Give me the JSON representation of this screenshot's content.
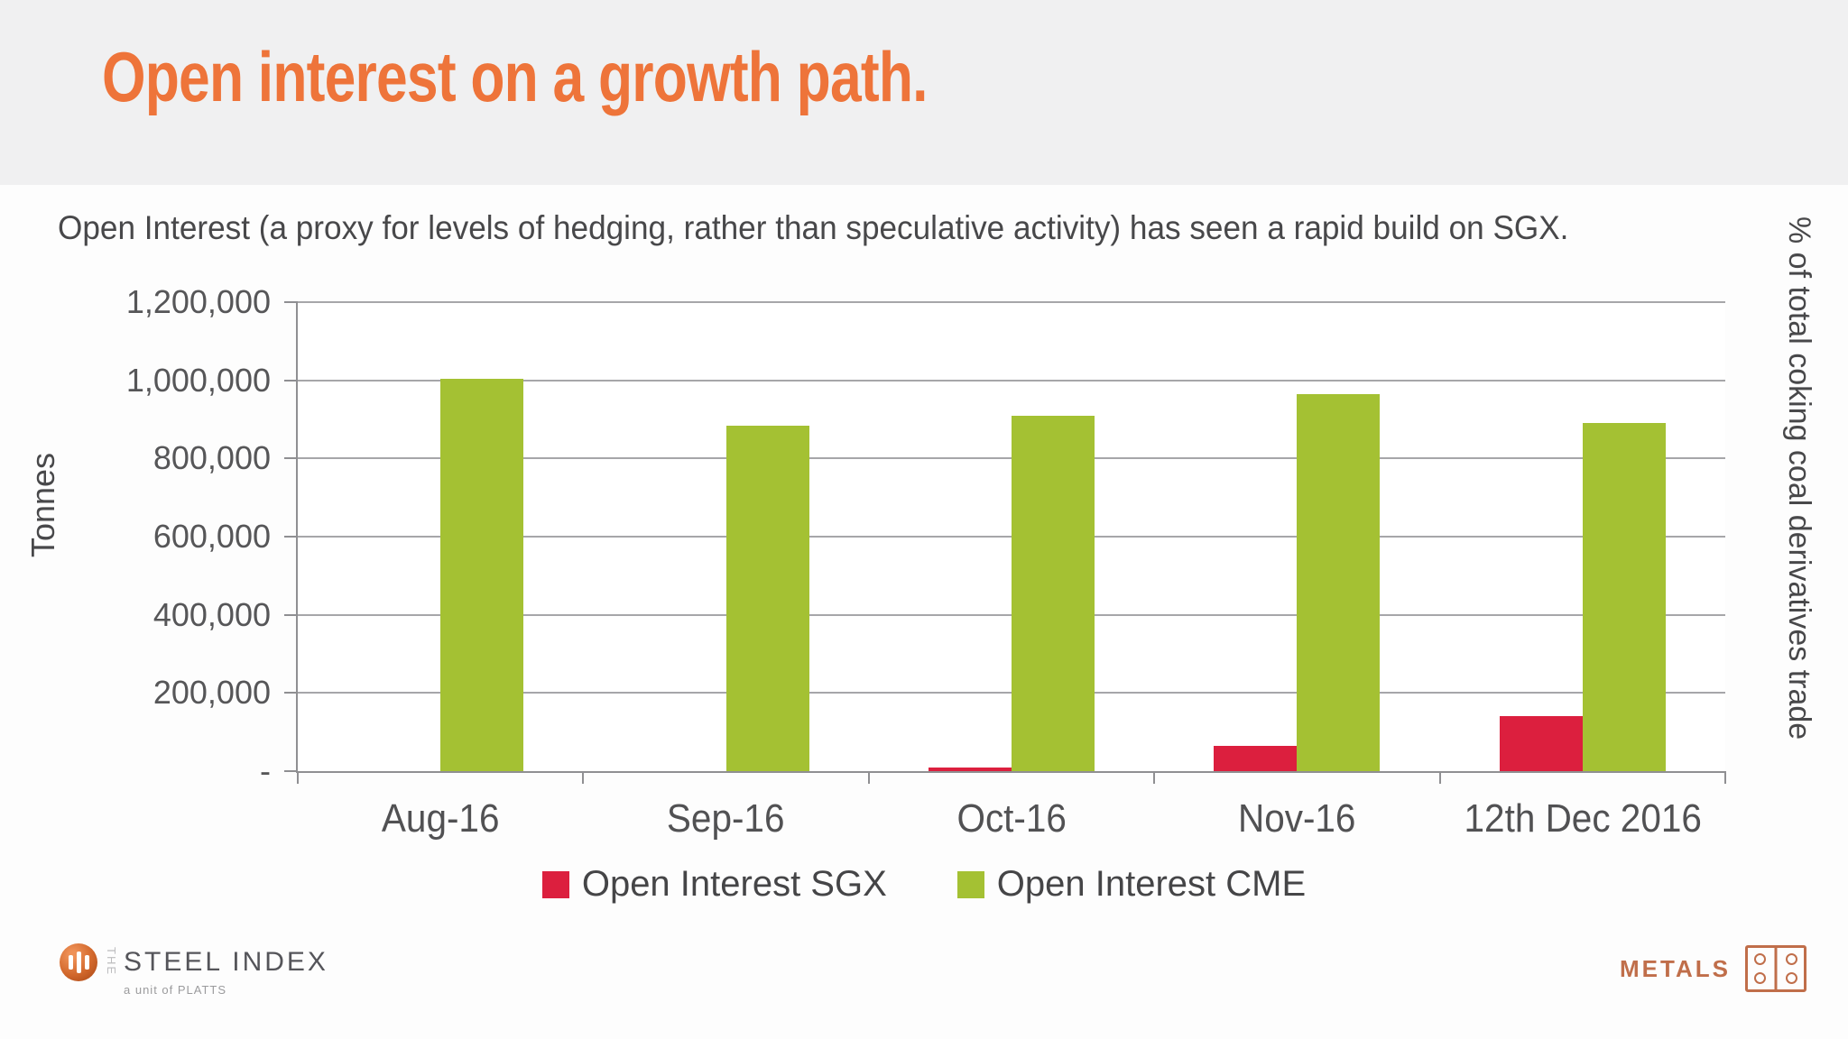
{
  "header": {
    "title": "Open interest on a growth path."
  },
  "subtitle": "Open Interest (a proxy for levels of hedging, rather than speculative activity) has seen a rapid  build on SGX.",
  "colors": {
    "title_orange": "#ee743a",
    "header_bg": "#f0f0f1",
    "sgx_red": "#dc1f3e",
    "cme_green": "#a4c133",
    "metals_brand": "#c06e4a"
  },
  "chart_data": {
    "type": "bar",
    "title": "",
    "categories": [
      "Aug-16",
      "Sep-16",
      "Oct-16",
      "Nov-16",
      "12th Dec 2016"
    ],
    "series": [
      {
        "name": "Open Interest SGX",
        "color": "#dc1f3e",
        "values": [
          0,
          0,
          10000,
          65000,
          140000
        ]
      },
      {
        "name": "Open Interest CME",
        "color": "#a4c133",
        "values": [
          1005000,
          885000,
          910000,
          965000,
          890000
        ]
      }
    ],
    "xlabel": "",
    "ylabel": "Tonnes",
    "right_ylabel": "% of total coking coal derivatives trade",
    "ylim": [
      0,
      1200000
    ],
    "ytick_interval": 200000,
    "ytick_labels_bottom_to_top": [
      "-",
      "200,000",
      "400,000",
      "600,000",
      "800,000",
      "1,000,000",
      "1,200,000"
    ],
    "grid": true,
    "legend_position": "bottom"
  },
  "legend": {
    "sgx": "Open Interest SGX",
    "cme": "Open Interest CME"
  },
  "footer": {
    "steel_index": {
      "the": "THE",
      "name": "STEEL INDEX",
      "tagline": "a unit of PLATTS"
    },
    "metals": {
      "label": "METALS"
    }
  }
}
